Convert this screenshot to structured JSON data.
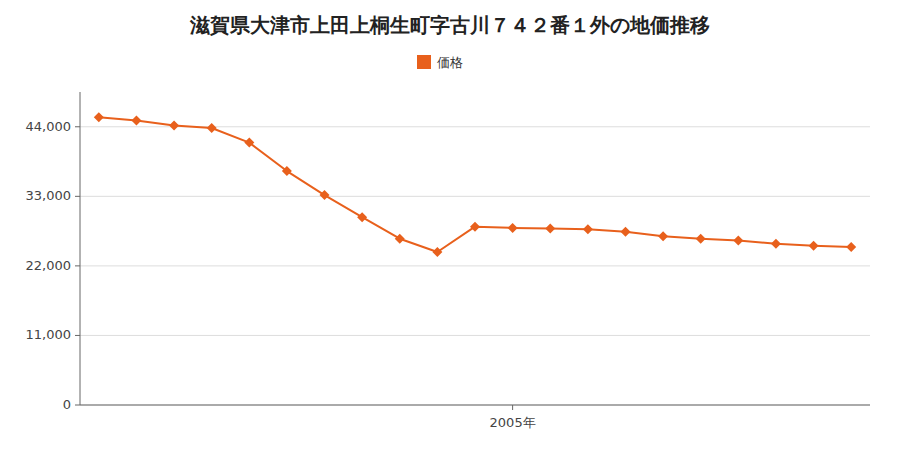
{
  "chart_data": {
    "type": "line",
    "title": "滋賀県大津市上田上桐生町字古川７４２番１外の地価推移",
    "x": [
      1994,
      1995,
      1996,
      1997,
      1998,
      1999,
      2000,
      2001,
      2002,
      2003,
      2004,
      2005,
      2006,
      2007,
      2008,
      2009,
      2010,
      2011,
      2012,
      2013,
      2014
    ],
    "series": [
      {
        "name": "価格",
        "color": "#e8601c",
        "marker": "diamond",
        "values": [
          45500,
          45000,
          44200,
          43800,
          41500,
          37000,
          33200,
          29700,
          26300,
          24200,
          28200,
          28000,
          27900,
          27800,
          27400,
          26700,
          26300,
          26000,
          25500,
          25200,
          25000
        ]
      }
    ],
    "xlim": [
      1993.5,
      2014.5
    ],
    "xticks": [
      {
        "value": 2005,
        "label": "2005年"
      }
    ],
    "ylim": [
      0,
      49500
    ],
    "yticks": [
      0,
      {
        "value": 11000,
        "label": "11,000"
      },
      {
        "value": 22000,
        "label": "22,000"
      },
      {
        "value": 33000,
        "label": "33,000"
      },
      {
        "value": 44000,
        "label": "44,000"
      }
    ],
    "grid": true,
    "legend": "top"
  }
}
